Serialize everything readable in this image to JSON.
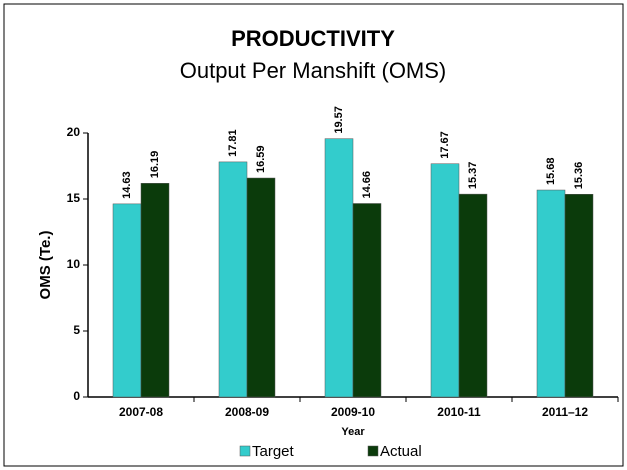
{
  "chart_data": {
    "type": "bar",
    "title": "PRODUCTIVITY",
    "subtitle": "Output Per Manshift (OMS)",
    "x_label": "Year",
    "y_label": "OMS (Te.)",
    "categories": [
      "2007-08",
      "2008-09",
      "2009-10",
      "2010-11",
      "2011–12"
    ],
    "series": [
      {
        "name": "Target",
        "color": "#33cccc",
        "values": [
          14.63,
          17.81,
          19.57,
          17.67,
          15.68
        ]
      },
      {
        "name": "Actual",
        "color": "#0b3b0b",
        "values": [
          16.19,
          16.59,
          14.66,
          15.37,
          15.36
        ]
      }
    ],
    "ylim": [
      0,
      20
    ],
    "yticks": [
      0,
      5,
      10,
      15,
      20
    ],
    "grid": false,
    "legend": "bottom"
  }
}
